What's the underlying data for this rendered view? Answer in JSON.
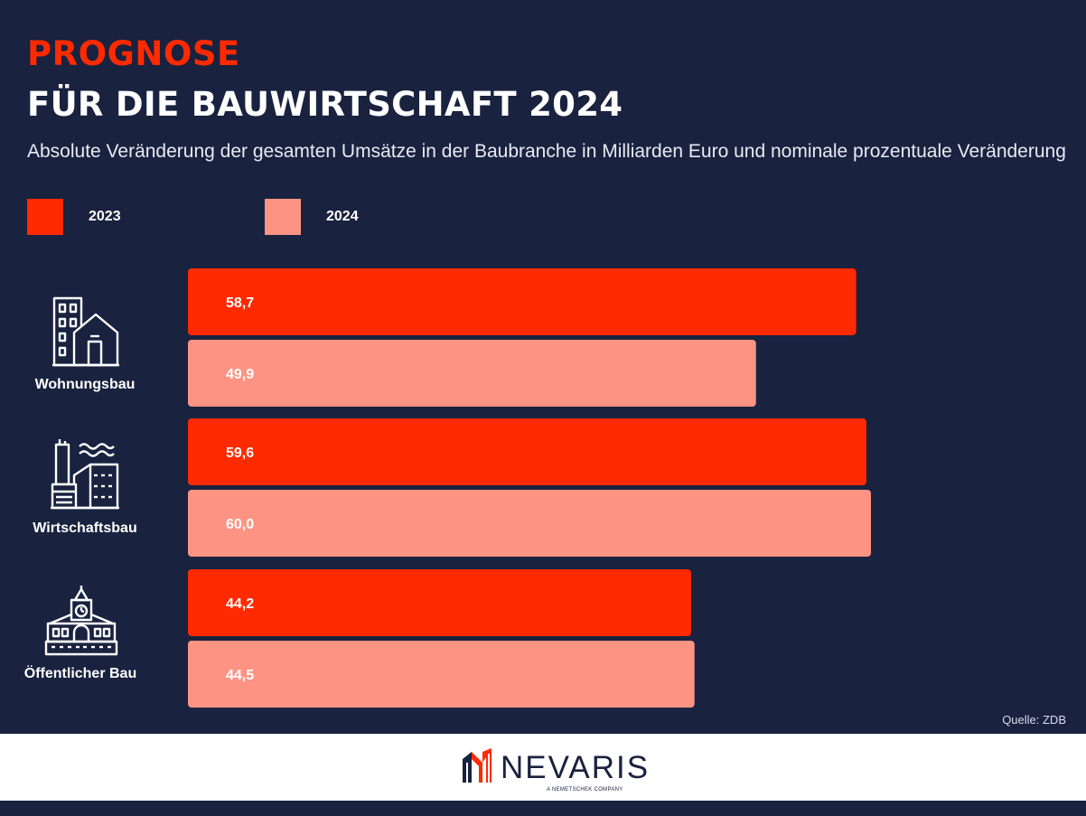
{
  "header": {
    "title_line1": "PROGNOSE",
    "title_line2": "FÜR DIE BAUWIRTSCHAFT 2024",
    "subtitle": "Absolute Veränderung der gesamten Umsätze in der Baubranche in Milliarden Euro und nominale prozentuale Veränderung"
  },
  "colors": {
    "accent": "#ff2a00",
    "series_2023": "#ff2a00",
    "series_2024": "#fd9483",
    "background": "#19223f",
    "footer": "#ffffff"
  },
  "chart_data": {
    "type": "bar",
    "orientation": "horizontal",
    "title": "PROGNOSE FÜR DIE BAUWIRTSCHAFT 2024",
    "subtitle": "Absolute Veränderung der gesamten Umsätze in der Baubranche in Milliarden Euro und nominale prozentuale Veränderung",
    "categories": [
      "Wohnungsbau",
      "Wirtschaftsbau",
      "Öffentlicher Bau"
    ],
    "category_icons": [
      "residential-building-icon",
      "industrial-building-icon",
      "public-building-icon"
    ],
    "series": [
      {
        "name": "2023",
        "values": [
          58.7,
          59.6,
          44.2
        ],
        "labels": [
          "58,7",
          "59,6",
          "44,2"
        ],
        "color": "#ff2a00"
      },
      {
        "name": "2024",
        "values": [
          49.9,
          60.0,
          44.5
        ],
        "labels": [
          "49,9",
          "60,0",
          "44,5"
        ],
        "color": "#fd9483"
      }
    ],
    "legend_placement": "top-left",
    "grid": false
  },
  "source": "Quelle: ZDB",
  "footer": {
    "logo_text": "NEVARIS",
    "logo_subtext": "A NEMETSCHEK COMPANY"
  }
}
